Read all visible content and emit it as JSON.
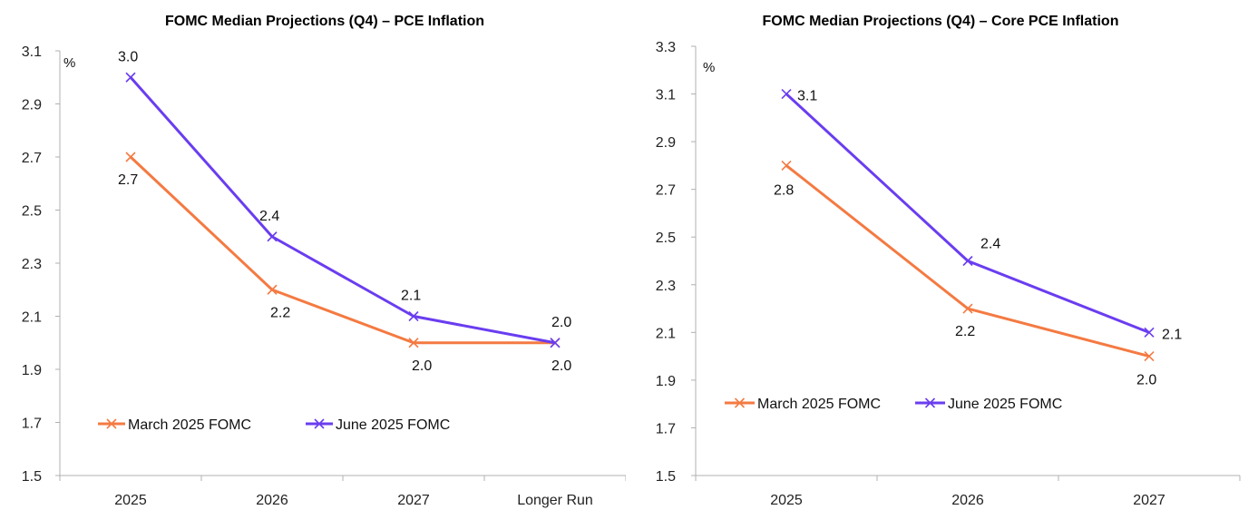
{
  "chart_data": [
    {
      "type": "line",
      "title": "FOMC Median Projections (Q4) – PCE Inflation",
      "unit_label": "%",
      "categories": [
        "2025",
        "2026",
        "2027",
        "Longer Run"
      ],
      "ylim": [
        1.5,
        3.1
      ],
      "yticks": [
        "1.5",
        "1.7",
        "1.9",
        "2.1",
        "2.3",
        "2.5",
        "2.7",
        "2.9",
        "3.1"
      ],
      "grid": false,
      "legend": "bottom-left",
      "series": [
        {
          "name": "March 2025 FOMC",
          "color": "#F47A42",
          "values": [
            2.7,
            2.2,
            2.0,
            2.0
          ],
          "labels": [
            "2.7",
            "2.2",
            "2.0",
            "2.0"
          ]
        },
        {
          "name": "June 2025 FOMC",
          "color": "#6A3DF0",
          "values": [
            3.0,
            2.4,
            2.1,
            2.0
          ],
          "labels": [
            "3.0",
            "2.4",
            "2.1",
            "2.0"
          ]
        }
      ]
    },
    {
      "type": "line",
      "title": "FOMC Median Projections (Q4) – Core PCE Inflation",
      "unit_label": "%",
      "categories": [
        "2025",
        "2026",
        "2027"
      ],
      "ylim": [
        1.5,
        3.3
      ],
      "yticks": [
        "1.5",
        "1.7",
        "1.9",
        "2.1",
        "2.3",
        "2.5",
        "2.7",
        "2.9",
        "3.1",
        "3.3"
      ],
      "grid": false,
      "legend": "bottom-left",
      "series": [
        {
          "name": "March 2025 FOMC",
          "color": "#F47A42",
          "values": [
            2.8,
            2.2,
            2.0
          ],
          "labels": [
            "2.8",
            "2.2",
            "2.0"
          ]
        },
        {
          "name": "June 2025 FOMC",
          "color": "#6A3DF0",
          "values": [
            3.1,
            2.4,
            2.1
          ],
          "labels": [
            "3.1",
            "2.4",
            "2.1"
          ]
        }
      ]
    }
  ]
}
